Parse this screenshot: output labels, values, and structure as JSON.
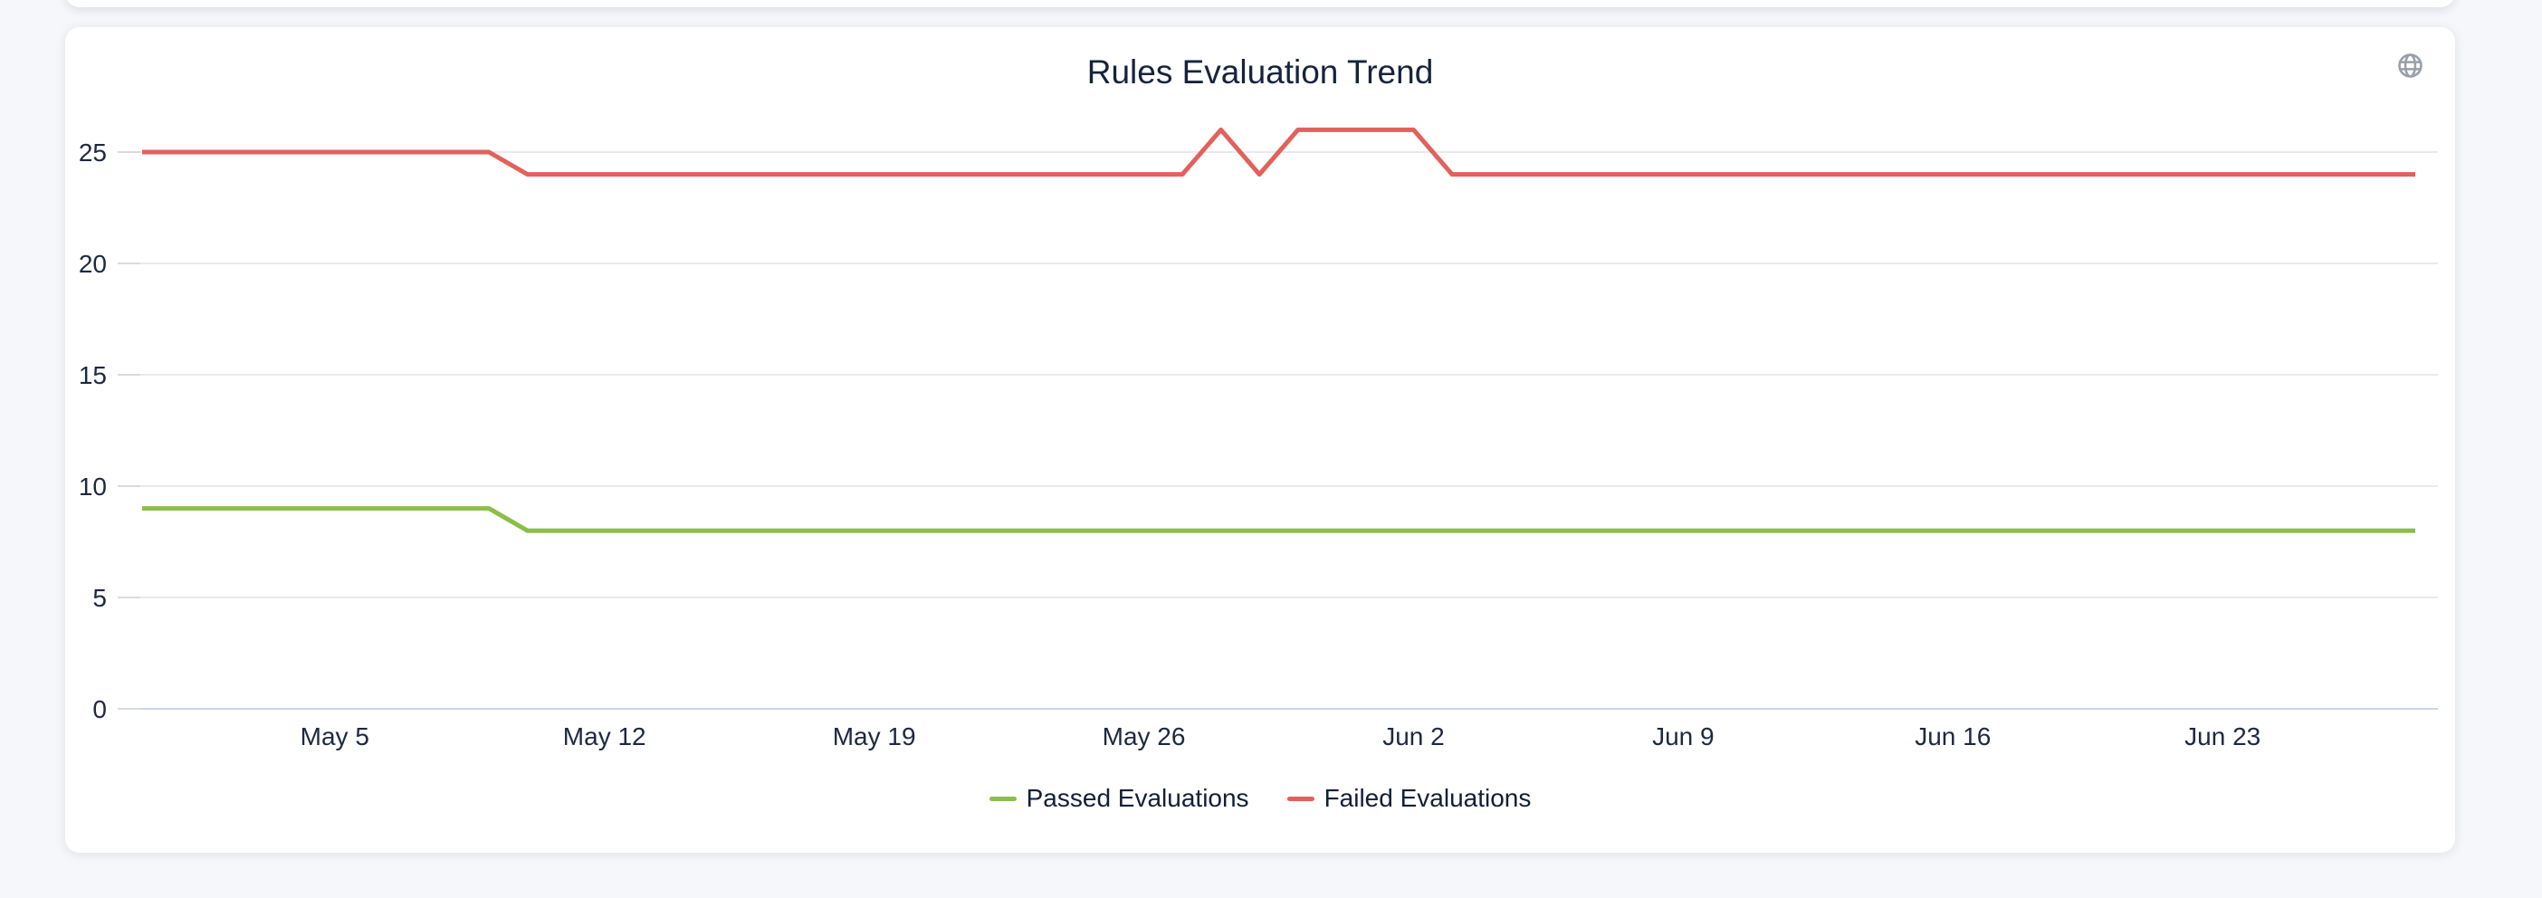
{
  "card": {
    "header_icon": "globe"
  },
  "colors": {
    "page_background": "#f5f7fa",
    "card_background": "#ffffff",
    "title_text": "#17233c",
    "axis_label": "#1c2940",
    "legend_text": "#121f38",
    "grid_line": "#e8eaed",
    "axis_line": "#ccd6e6",
    "axis_tick": "#d9dbde",
    "globe_icon": "#98a0ab"
  },
  "chart_data": {
    "type": "line",
    "title": "Rules Evaluation Trend",
    "xlabel": "",
    "ylabel": "",
    "x_tick_interval_days": 7,
    "total_days": 60,
    "x_ticks": [
      {
        "day_index": 5,
        "label": "May 5"
      },
      {
        "day_index": 12,
        "label": "May 12"
      },
      {
        "day_index": 19,
        "label": "May 19"
      },
      {
        "day_index": 26,
        "label": "May 26"
      },
      {
        "day_index": 33,
        "label": "Jun 2"
      },
      {
        "day_index": 40,
        "label": "Jun 9"
      },
      {
        "day_index": 47,
        "label": "Jun 16"
      },
      {
        "day_index": 54,
        "label": "Jun 23"
      }
    ],
    "y_ticks": [
      0,
      5,
      10,
      15,
      20,
      25
    ],
    "y_range": [
      0,
      27
    ],
    "grid": "horizontal-only",
    "legend_position": "bottom-center",
    "series": [
      {
        "name": "Passed Evaluations",
        "color": "#8cbe49",
        "values": [
          9,
          9,
          9,
          9,
          9,
          9,
          9,
          9,
          9,
          9,
          8,
          8,
          8,
          8,
          8,
          8,
          8,
          8,
          8,
          8,
          8,
          8,
          8,
          8,
          8,
          8,
          8,
          8,
          8,
          8,
          8,
          8,
          8,
          8,
          8,
          8,
          8,
          8,
          8,
          8,
          8,
          8,
          8,
          8,
          8,
          8,
          8,
          8,
          8,
          8,
          8,
          8,
          8,
          8,
          8,
          8,
          8,
          8,
          8,
          8
        ]
      },
      {
        "name": "Failed Evaluations",
        "color": "#e2615c",
        "values": [
          25,
          25,
          25,
          25,
          25,
          25,
          25,
          25,
          25,
          25,
          24,
          24,
          24,
          24,
          24,
          24,
          24,
          24,
          24,
          24,
          24,
          24,
          24,
          24,
          24,
          24,
          24,
          24,
          26,
          24,
          26,
          26,
          26,
          26,
          24,
          24,
          24,
          24,
          24,
          24,
          24,
          24,
          24,
          24,
          24,
          24,
          24,
          24,
          24,
          24,
          24,
          24,
          24,
          24,
          24,
          24,
          24,
          24,
          24,
          24
        ]
      }
    ]
  }
}
